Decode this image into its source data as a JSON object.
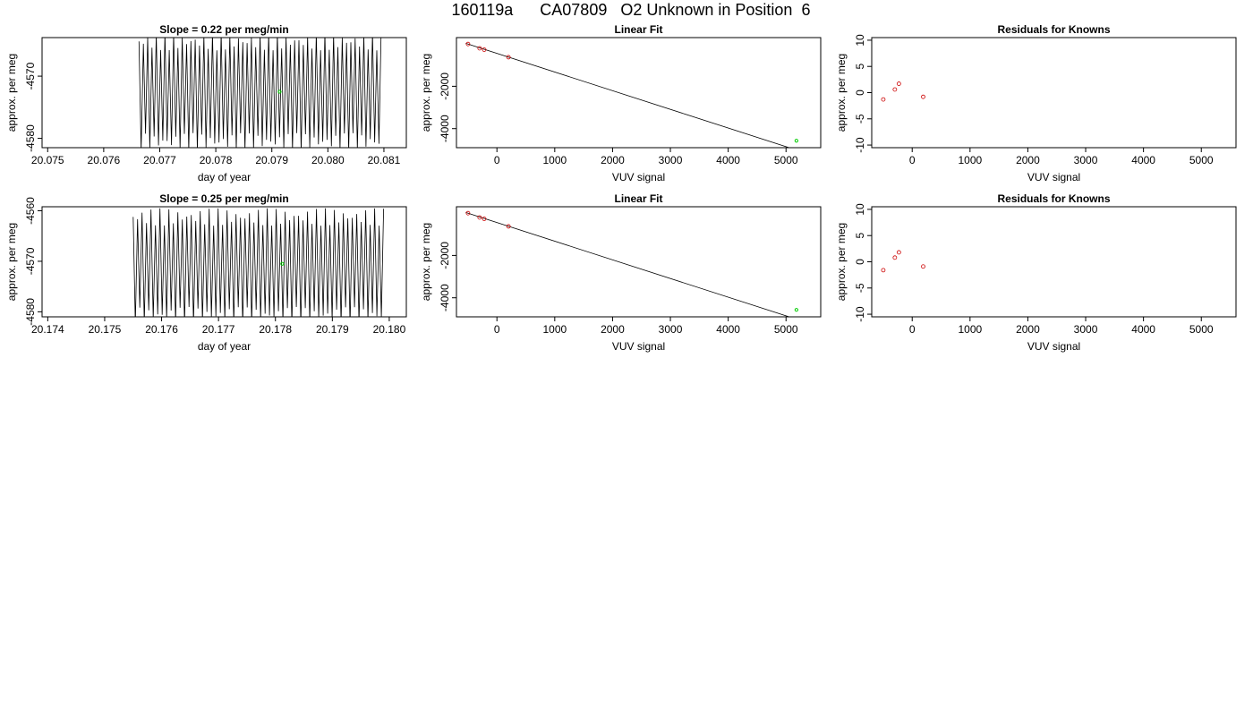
{
  "page": {
    "title": "160119a      CA07809   O2 Unknown in Position  6"
  },
  "colors": {
    "axis": "#000000",
    "trace": "#000000",
    "unknown_point": "#00cc00",
    "known_point": "#cc0000"
  },
  "chart_data": [
    {
      "type": "line",
      "title": "Slope =  0.22  per meg/min",
      "xlabel": "day of year",
      "ylabel": "approx. per meg",
      "xlim": [
        20.0749,
        20.0814
      ],
      "ylim": [
        -4581.5,
        -4563.8
      ],
      "xticks": [
        20.075,
        20.076,
        20.077,
        20.078,
        20.079,
        20.08,
        20.081
      ],
      "xtick_labels": [
        "20.075",
        "20.076",
        "20.077",
        "20.078",
        "20.079",
        "20.080",
        "20.081"
      ],
      "yticks": [
        -4570,
        -4580
      ],
      "ytick_labels": [
        "-4570",
        "-4580"
      ],
      "trace": {
        "x_start": 20.07663,
        "x_end": 20.08095,
        "cycles": 56,
        "center": -4572.5,
        "amplitude": 9.5
      },
      "highlight_point": {
        "x": 20.07914,
        "y": -4572.5
      }
    },
    {
      "type": "scatter",
      "title": "Linear Fit",
      "xlabel": "VUV signal",
      "ylabel": "approx. per meg",
      "xlim": [
        -700,
        5600
      ],
      "ylim": [
        -4900,
        300
      ],
      "xticks": [
        0,
        1000,
        2000,
        3000,
        4000,
        5000
      ],
      "xtick_labels": [
        "0",
        "1000",
        "2000",
        "3000",
        "4000",
        "5000"
      ],
      "yticks": [
        -2000,
        -4000
      ],
      "ytick_labels": [
        "-2000",
        "-4000"
      ],
      "known_points": [
        [
          -500,
          -4
        ],
        [
          -300,
          -206
        ],
        [
          -220,
          -271
        ],
        [
          200,
          -627
        ]
      ],
      "unknown_point": [
        5180,
        -4573
      ],
      "fit_line": {
        "x": [
          -540,
          5400
        ],
        "slope": -0.8813,
        "intercept": -446
      }
    },
    {
      "type": "scatter",
      "title": "Residuals for Knowns",
      "xlabel": "VUV signal",
      "ylabel": "approx. per meg",
      "xlim": [
        -700,
        5600
      ],
      "ylim": [
        -10.5,
        10.5
      ],
      "xticks": [
        0,
        1000,
        2000,
        3000,
        4000,
        5000
      ],
      "xtick_labels": [
        "0",
        "1000",
        "2000",
        "3000",
        "4000",
        "5000"
      ],
      "yticks": [
        10,
        5,
        0,
        -5,
        -10
      ],
      "ytick_labels": [
        "10",
        "5",
        "0",
        "-5",
        "-10"
      ],
      "points": [
        [
          -500,
          -1.3
        ],
        [
          -300,
          0.6
        ],
        [
          -230,
          1.7
        ],
        [
          190,
          -0.8
        ]
      ]
    },
    {
      "type": "line",
      "title": "Slope =  0.25  per meg/min",
      "xlabel": "day of year",
      "ylabel": "approx. per meg",
      "xlim": [
        20.1739,
        20.1803
      ],
      "ylim": [
        -4581.0,
        -4559.2
      ],
      "xticks": [
        20.174,
        20.175,
        20.176,
        20.177,
        20.178,
        20.179,
        20.18
      ],
      "xtick_labels": [
        "20.174",
        "20.175",
        "20.176",
        "20.177",
        "20.178",
        "20.179",
        "20.180"
      ],
      "yticks": [
        -4560,
        -4570,
        -4580
      ],
      "ytick_labels": [
        "-4560",
        "-4570",
        "-4580"
      ],
      "trace": {
        "x_start": 20.1755,
        "x_end": 20.1799,
        "cycles": 56,
        "center": -4571,
        "amplitude": 11.5
      },
      "highlight_point": {
        "x": 20.17812,
        "y": -4570.5
      }
    },
    {
      "type": "scatter",
      "title": "Linear Fit",
      "xlabel": "VUV signal",
      "ylabel": "approx. per meg",
      "xlim": [
        -700,
        5600
      ],
      "ylim": [
        -4900,
        300
      ],
      "xticks": [
        0,
        1000,
        2000,
        3000,
        4000,
        5000
      ],
      "xtick_labels": [
        "0",
        "1000",
        "2000",
        "3000",
        "4000",
        "5000"
      ],
      "yticks": [
        -2000,
        -4000
      ],
      "ytick_labels": [
        "-2000",
        "-4000"
      ],
      "known_points": [
        [
          -500,
          -4
        ],
        [
          -300,
          -206
        ],
        [
          -220,
          -271
        ],
        [
          200,
          -627
        ]
      ],
      "unknown_point": [
        5180,
        -4570
      ],
      "fit_line": {
        "x": [
          -540,
          5400
        ],
        "slope": -0.8813,
        "intercept": -446
      }
    },
    {
      "type": "scatter",
      "title": "Residuals for Knowns",
      "xlabel": "VUV signal",
      "ylabel": "approx. per meg",
      "xlim": [
        -700,
        5600
      ],
      "ylim": [
        -10.5,
        10.5
      ],
      "xticks": [
        0,
        1000,
        2000,
        3000,
        4000,
        5000
      ],
      "xtick_labels": [
        "0",
        "1000",
        "2000",
        "3000",
        "4000",
        "5000"
      ],
      "yticks": [
        10,
        5,
        0,
        -5,
        -10
      ],
      "ytick_labels": [
        "10",
        "5",
        "0",
        "-5",
        "-10"
      ],
      "points": [
        [
          -500,
          -1.6
        ],
        [
          -300,
          0.8
        ],
        [
          -230,
          1.8
        ],
        [
          190,
          -0.9
        ]
      ]
    }
  ]
}
